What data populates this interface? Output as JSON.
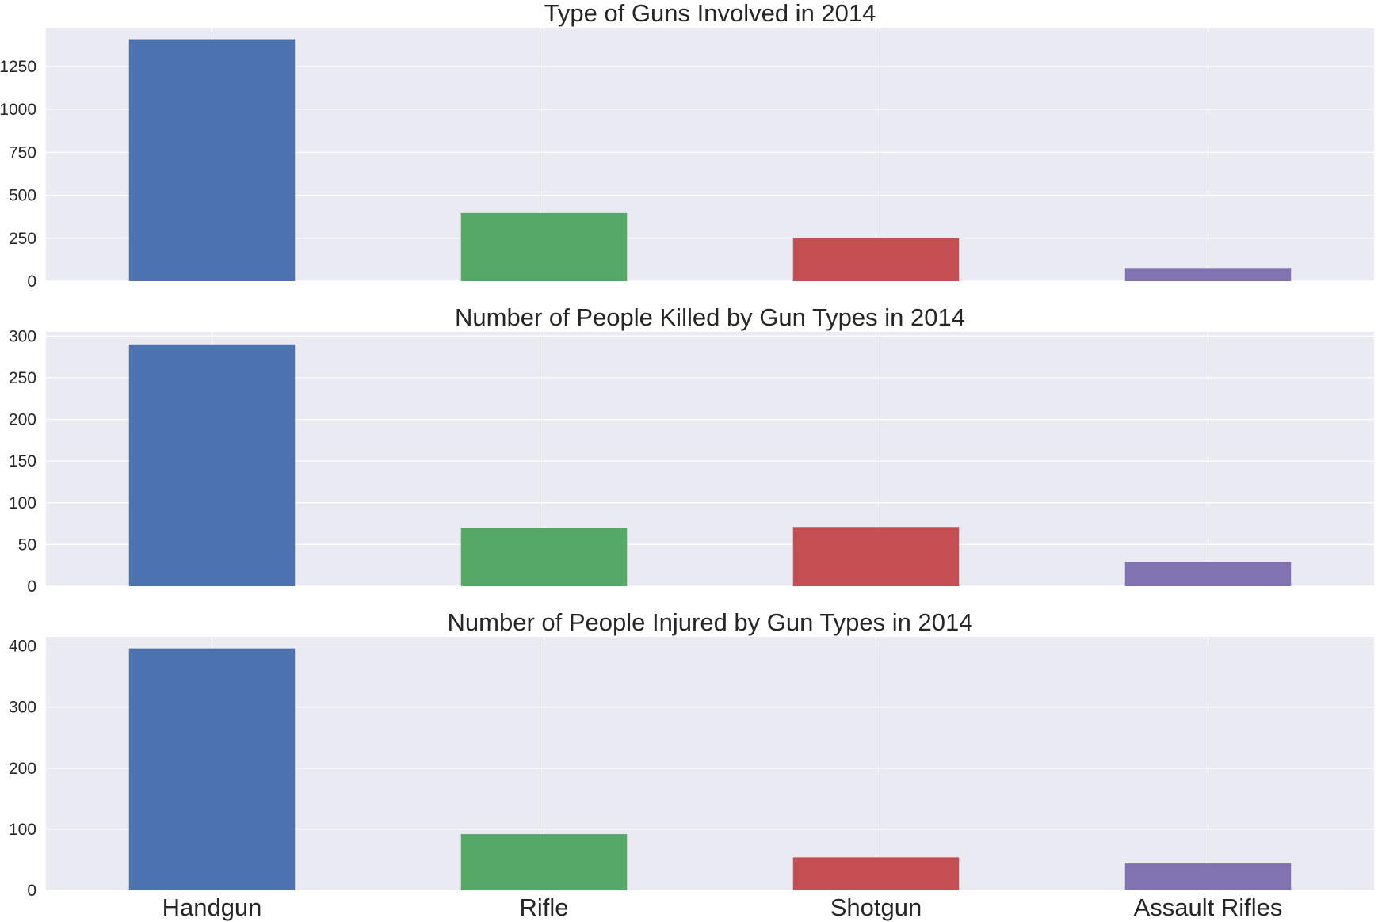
{
  "chart_data": [
    {
      "type": "bar",
      "title": "Type of Guns Involved in 2014",
      "categories": [
        "Handgun",
        "Rifle",
        "Shotgun",
        "Assault Rifles"
      ],
      "values": [
        1408,
        397,
        250,
        77
      ],
      "ylim": [
        0,
        1475
      ],
      "yticks": [
        0,
        250,
        500,
        750,
        1000,
        1250
      ],
      "show_xtick_labels": false,
      "grid": true
    },
    {
      "type": "bar",
      "title": "Number of People Killed by Gun Types in 2014",
      "categories": [
        "Handgun",
        "Rifle",
        "Shotgun",
        "Assault Rifles"
      ],
      "values": [
        290,
        70,
        71,
        29
      ],
      "ylim": [
        0,
        305
      ],
      "yticks": [
        0,
        50,
        100,
        150,
        200,
        250,
        300
      ],
      "show_xtick_labels": false,
      "grid": true
    },
    {
      "type": "bar",
      "title": "Number of People Injured by Gun Types in 2014",
      "categories": [
        "Handgun",
        "Rifle",
        "Shotgun",
        "Assault Rifles"
      ],
      "values": [
        396,
        92,
        54,
        44
      ],
      "ylim": [
        0,
        415
      ],
      "yticks": [
        0,
        100,
        200,
        300,
        400
      ],
      "show_xtick_labels": true,
      "grid": true
    }
  ],
  "colors": {
    "plot_background": "#EAEAF2",
    "grid": "#FFFFFF",
    "bars": [
      "#4C72B0",
      "#55A868",
      "#C44E52",
      "#8172B2"
    ]
  }
}
